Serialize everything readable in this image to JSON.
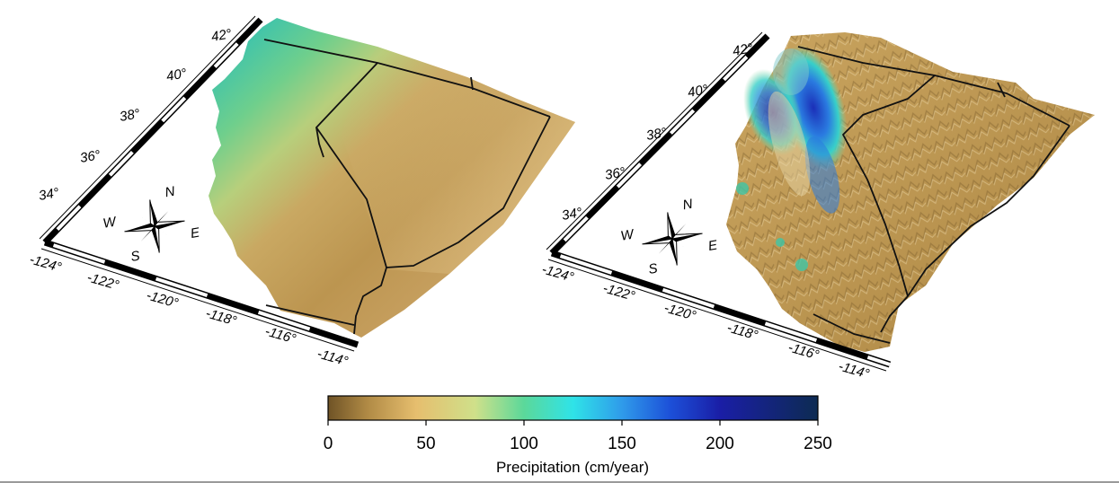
{
  "colorbar": {
    "label": "Precipitation (cm/year)",
    "ticks": [
      "0",
      "50",
      "100",
      "150",
      "200",
      "250"
    ],
    "min": 0,
    "max": 250,
    "stops": [
      {
        "value": 0,
        "color": "#6f5326"
      },
      {
        "value": 20,
        "color": "#b08a45"
      },
      {
        "value": 45,
        "color": "#e6be6e"
      },
      {
        "value": 75,
        "color": "#cfe08a"
      },
      {
        "value": 100,
        "color": "#5bd89a"
      },
      {
        "value": 125,
        "color": "#2fe3e8"
      },
      {
        "value": 150,
        "color": "#2f9bea"
      },
      {
        "value": 175,
        "color": "#1c4fd8"
      },
      {
        "value": 200,
        "color": "#1a1ea6"
      },
      {
        "value": 250,
        "color": "#0d2b52"
      }
    ]
  },
  "maps": [
    {
      "id": "left",
      "style": "flat",
      "lat_labels": [
        "34°",
        "36°",
        "38°",
        "40°",
        "42°"
      ],
      "lon_labels": [
        "-124°",
        "-122°",
        "-120°",
        "-118°",
        "-116°",
        "-114°"
      ],
      "compass": {
        "n": "N",
        "s": "S",
        "e": "E",
        "w": "W"
      }
    },
    {
      "id": "right",
      "style": "relief",
      "lat_labels": [
        "34°",
        "36°",
        "38°",
        "40°",
        "42°"
      ],
      "lon_labels": [
        "-124°",
        "-122°",
        "-120°",
        "-118°",
        "-116°",
        "-114°"
      ],
      "compass": {
        "n": "N",
        "s": "S",
        "e": "E",
        "w": "W"
      }
    }
  ]
}
